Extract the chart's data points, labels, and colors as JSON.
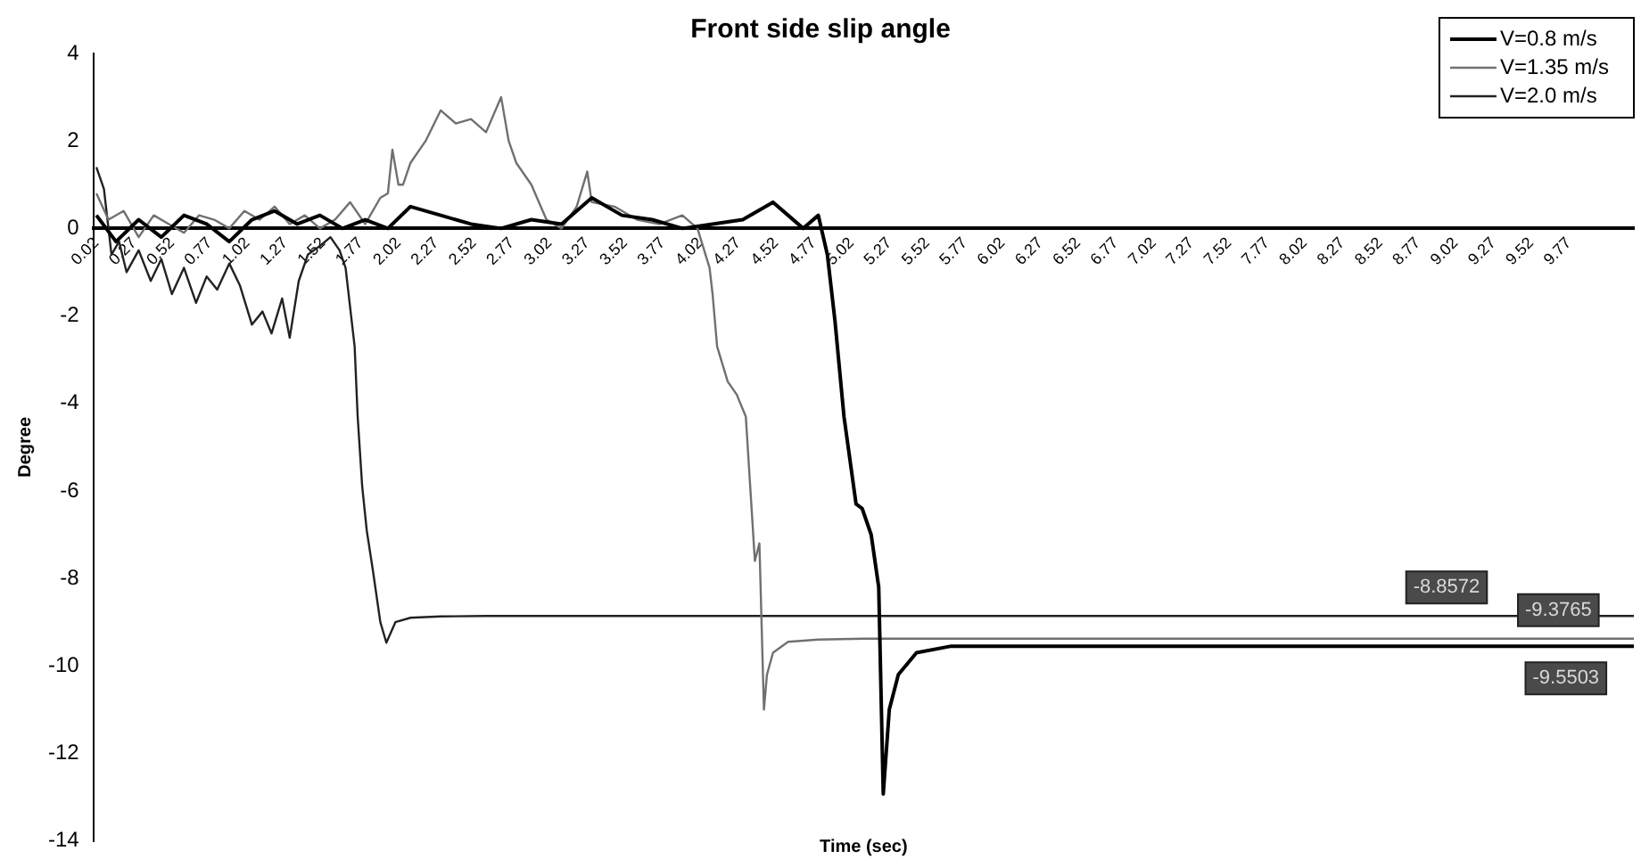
{
  "chart_data": {
    "type": "line",
    "title": "Front side slip angle",
    "xlabel": "Time (sec)",
    "ylabel": "Degree",
    "xlim": [
      0,
      10.2
    ],
    "ylim": [
      -14,
      4
    ],
    "xticks": [
      0.02,
      0.27,
      0.52,
      0.77,
      1.02,
      1.27,
      1.52,
      1.77,
      2.02,
      2.27,
      2.52,
      2.77,
      3.02,
      3.27,
      3.52,
      3.77,
      4.02,
      4.27,
      4.52,
      4.77,
      5.02,
      5.27,
      5.52,
      5.77,
      6.02,
      6.27,
      6.52,
      6.77,
      7.02,
      7.27,
      7.52,
      7.77,
      8.02,
      8.27,
      8.52,
      8.77,
      9.02,
      9.27,
      9.52,
      9.77
    ],
    "yticks": [
      -14,
      -12,
      -10,
      -8,
      -6,
      -4,
      -2,
      0,
      2,
      4
    ],
    "grid": false,
    "legend": "top right",
    "marker": "none",
    "line_style": "solid",
    "annotations": [
      {
        "text": "-8.8572",
        "x": 8.96,
        "y": -8.86
      },
      {
        "text": "-9.3765",
        "x": 9.7,
        "y": -9.38
      },
      {
        "text": "-9.5503",
        "x": 9.75,
        "y": -9.55
      }
    ],
    "series": [
      {
        "name": "V=0.8 m/s",
        "color": "#000000",
        "x": [
          0.02,
          0.15,
          0.3,
          0.45,
          0.6,
          0.75,
          0.9,
          1.05,
          1.2,
          1.35,
          1.5,
          1.65,
          1.8,
          1.95,
          2.1,
          2.3,
          2.5,
          2.7,
          2.9,
          3.1,
          3.3,
          3.5,
          3.7,
          3.9,
          4.1,
          4.3,
          4.5,
          4.6,
          4.7,
          4.8,
          4.86,
          4.91,
          4.97,
          5.05,
          5.09,
          5.15,
          5.2,
          5.23,
          5.27,
          5.33,
          5.45,
          5.68,
          6.0,
          7.0,
          8.0,
          9.0,
          10.2
        ],
        "values": [
          0.3,
          -0.3,
          0.2,
          -0.2,
          0.3,
          0.1,
          -0.3,
          0.2,
          0.4,
          0.1,
          0.3,
          0.0,
          0.2,
          0.0,
          0.5,
          0.3,
          0.1,
          0.0,
          0.2,
          0.1,
          0.7,
          0.3,
          0.2,
          0.0,
          0.1,
          0.2,
          0.6,
          0.3,
          0.0,
          0.3,
          -0.6,
          -2.1,
          -4.3,
          -6.3,
          -6.4,
          -7.0,
          -8.2,
          -12.93,
          -11.0,
          -10.2,
          -9.7,
          -9.55,
          -9.55,
          -9.55,
          -9.55,
          -9.55,
          -9.55
        ]
      },
      {
        "name": "V=1.35 m/s",
        "color": "#707070",
        "x": [
          0.02,
          0.1,
          0.2,
          0.3,
          0.4,
          0.5,
          0.6,
          0.7,
          0.8,
          0.9,
          1.0,
          1.1,
          1.2,
          1.3,
          1.4,
          1.5,
          1.6,
          1.7,
          1.8,
          1.9,
          1.95,
          1.98,
          2.02,
          2.05,
          2.1,
          2.2,
          2.3,
          2.4,
          2.5,
          2.6,
          2.7,
          2.75,
          2.8,
          2.9,
          3.0,
          3.1,
          3.2,
          3.27,
          3.3,
          3.45,
          3.6,
          3.75,
          3.9,
          4.0,
          4.08,
          4.1,
          4.13,
          4.2,
          4.26,
          4.32,
          4.38,
          4.41,
          4.44,
          4.46,
          4.5,
          4.6,
          4.8,
          5.1,
          5.5,
          6.5,
          7.5,
          8.5,
          9.5,
          10.2
        ],
        "values": [
          0.8,
          0.2,
          0.4,
          -0.2,
          0.3,
          0.1,
          -0.1,
          0.3,
          0.2,
          0.0,
          0.4,
          0.2,
          0.5,
          0.1,
          0.3,
          0.0,
          0.2,
          0.6,
          0.1,
          0.7,
          0.8,
          1.8,
          1.0,
          1.0,
          1.5,
          2.0,
          2.7,
          2.4,
          2.5,
          2.2,
          3.0,
          2.0,
          1.5,
          1.0,
          0.2,
          0.0,
          0.5,
          1.3,
          0.6,
          0.5,
          0.2,
          0.1,
          0.3,
          0.0,
          -0.9,
          -1.5,
          -2.7,
          -3.5,
          -3.8,
          -4.3,
          -7.6,
          -7.2,
          -11.0,
          -10.2,
          -9.7,
          -9.45,
          -9.4,
          -9.38,
          -9.38,
          -9.38,
          -9.38,
          -9.38,
          -9.38,
          -9.38
        ]
      },
      {
        "name": "V=2.0 m/s",
        "color": "#222222",
        "x": [
          0.02,
          0.07,
          0.12,
          0.17,
          0.22,
          0.3,
          0.38,
          0.45,
          0.52,
          0.6,
          0.68,
          0.75,
          0.82,
          0.9,
          0.97,
          1.05,
          1.12,
          1.18,
          1.25,
          1.3,
          1.36,
          1.42,
          1.5,
          1.57,
          1.63,
          1.67,
          1.73,
          1.75,
          1.78,
          1.81,
          1.85,
          1.9,
          1.94,
          2.0,
          2.1,
          2.3,
          2.6,
          3.0,
          4.0,
          5.0,
          6.0,
          7.0,
          8.0,
          9.0,
          10.2
        ],
        "values": [
          1.4,
          0.9,
          -0.6,
          -0.3,
          -1.0,
          -0.5,
          -1.2,
          -0.7,
          -1.5,
          -0.9,
          -1.7,
          -1.1,
          -1.4,
          -0.8,
          -1.3,
          -2.2,
          -1.9,
          -2.4,
          -1.6,
          -2.5,
          -1.2,
          -0.6,
          -0.4,
          -0.2,
          -0.5,
          -0.9,
          -2.7,
          -4.3,
          -5.9,
          -6.9,
          -7.8,
          -9.0,
          -9.47,
          -9.0,
          -8.9,
          -8.87,
          -8.86,
          -8.86,
          -8.86,
          -8.86,
          -8.86,
          -8.86,
          -8.86,
          -8.86,
          -8.86
        ]
      }
    ]
  }
}
